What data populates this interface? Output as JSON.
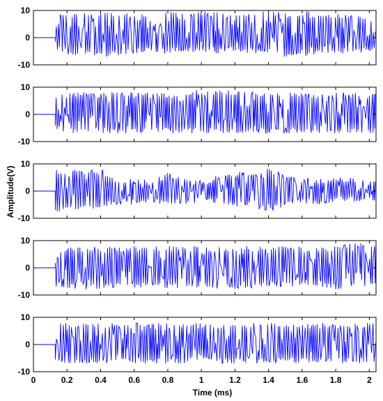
{
  "colors": {
    "signal": "#0000ff",
    "axis": "#000000",
    "background": "#ffffff"
  },
  "chart_data": {
    "type": "line",
    "xlabel": "Time (ms)",
    "ylabel": "Amplitude(V)",
    "xlim": [
      0,
      2.04
    ],
    "ylim": [
      -10,
      10
    ],
    "x_ticks": [
      0,
      0.2,
      0.4,
      0.6,
      0.8,
      1,
      1.2,
      1.4,
      1.6,
      1.8,
      2
    ],
    "x_tick_labels": [
      "0",
      "0.2",
      "0.4",
      "0.6",
      "0.8",
      "1",
      "1.2",
      "1.4",
      "1.6",
      "1.8",
      "2"
    ],
    "y_ticks": [
      -10,
      0,
      10
    ],
    "y_tick_labels": [
      "-10",
      "0",
      "10"
    ],
    "grid": false,
    "signal_onset_ms": 0.13,
    "series": [
      {
        "envelope": [
          [
            0.13,
            -6,
            9
          ],
          [
            0.2,
            -7,
            9
          ],
          [
            0.3,
            -7,
            9
          ],
          [
            0.4,
            -7,
            9.5
          ],
          [
            0.5,
            -7,
            9
          ],
          [
            0.6,
            -6,
            9.5
          ],
          [
            0.7,
            -5,
            9
          ],
          [
            0.8,
            -6,
            9.5
          ],
          [
            0.9,
            -5,
            9.5
          ],
          [
            1.0,
            -6,
            10
          ],
          [
            1.1,
            -6,
            10
          ],
          [
            1.2,
            -5,
            10
          ],
          [
            1.3,
            -6,
            10
          ],
          [
            1.4,
            -6,
            10
          ],
          [
            1.5,
            -7,
            9
          ],
          [
            1.6,
            -7,
            10
          ],
          [
            1.7,
            -6,
            9
          ],
          [
            1.8,
            -6,
            9
          ],
          [
            1.9,
            -6,
            9
          ],
          [
            2.0,
            -5,
            8
          ]
        ]
      },
      {
        "envelope": [
          [
            0.13,
            -6,
            8
          ],
          [
            0.2,
            -7,
            8
          ],
          [
            0.3,
            -7,
            9
          ],
          [
            0.4,
            -7,
            8
          ],
          [
            0.5,
            -7,
            9
          ],
          [
            0.6,
            -7,
            8
          ],
          [
            0.7,
            -7,
            8
          ],
          [
            0.8,
            -7,
            8
          ],
          [
            0.9,
            -7,
            9
          ],
          [
            1.0,
            -7,
            9
          ],
          [
            1.1,
            -7,
            9
          ],
          [
            1.2,
            -7,
            9
          ],
          [
            1.3,
            -7,
            9
          ],
          [
            1.4,
            -7,
            8
          ],
          [
            1.5,
            -7,
            9
          ],
          [
            1.6,
            -7,
            8
          ],
          [
            1.7,
            -7,
            8
          ],
          [
            1.8,
            -7,
            8
          ],
          [
            1.9,
            -7,
            8
          ],
          [
            2.0,
            -7,
            8
          ]
        ]
      },
      {
        "envelope": [
          [
            0.13,
            -8,
            8
          ],
          [
            0.2,
            -8,
            8
          ],
          [
            0.3,
            -7,
            8
          ],
          [
            0.4,
            -6,
            8
          ],
          [
            0.5,
            -5,
            5
          ],
          [
            0.6,
            -5,
            5
          ],
          [
            0.7,
            -4,
            4
          ],
          [
            0.8,
            -6,
            7
          ],
          [
            0.9,
            -5,
            5
          ],
          [
            1.0,
            -4,
            4
          ],
          [
            1.1,
            -5,
            6
          ],
          [
            1.2,
            -6,
            8
          ],
          [
            1.3,
            -6,
            7
          ],
          [
            1.4,
            -8,
            9
          ],
          [
            1.5,
            -6,
            6
          ],
          [
            1.6,
            -5,
            5
          ],
          [
            1.7,
            -5,
            5
          ],
          [
            1.8,
            -4,
            5
          ],
          [
            1.9,
            -4,
            5
          ],
          [
            2.0,
            -4,
            4
          ]
        ]
      },
      {
        "envelope": [
          [
            0.13,
            -7,
            8
          ],
          [
            0.2,
            -8,
            8
          ],
          [
            0.3,
            -8,
            8
          ],
          [
            0.4,
            -8,
            8
          ],
          [
            0.5,
            -7,
            8
          ],
          [
            0.6,
            -8,
            8
          ],
          [
            0.7,
            -7,
            8
          ],
          [
            0.8,
            -8,
            8
          ],
          [
            0.9,
            -8,
            8
          ],
          [
            1.0,
            -7,
            8
          ],
          [
            1.1,
            -8,
            8
          ],
          [
            1.2,
            -8,
            8
          ],
          [
            1.3,
            -8,
            8
          ],
          [
            1.4,
            -7,
            8
          ],
          [
            1.5,
            -7,
            8
          ],
          [
            1.6,
            -7,
            8
          ],
          [
            1.7,
            -7,
            8
          ],
          [
            1.8,
            -8,
            8
          ],
          [
            1.9,
            -7,
            9
          ],
          [
            2.0,
            -7,
            9
          ]
        ]
      },
      {
        "envelope": [
          [
            0.13,
            -7,
            8
          ],
          [
            0.2,
            -7,
            8
          ],
          [
            0.3,
            -7,
            8
          ],
          [
            0.4,
            -7,
            8
          ],
          [
            0.5,
            -7,
            8
          ],
          [
            0.6,
            -7,
            8
          ],
          [
            0.7,
            -7,
            8
          ],
          [
            0.8,
            -7,
            8
          ],
          [
            0.9,
            -7,
            8
          ],
          [
            1.0,
            -6,
            8
          ],
          [
            1.1,
            -7,
            8
          ],
          [
            1.2,
            -7,
            8
          ],
          [
            1.3,
            -7,
            8
          ],
          [
            1.4,
            -7,
            8
          ],
          [
            1.5,
            -7,
            8
          ],
          [
            1.6,
            -7,
            8
          ],
          [
            1.7,
            -7,
            8
          ],
          [
            1.8,
            -7,
            8
          ],
          [
            1.9,
            -7,
            8
          ],
          [
            2.0,
            -7,
            8
          ]
        ]
      }
    ]
  }
}
